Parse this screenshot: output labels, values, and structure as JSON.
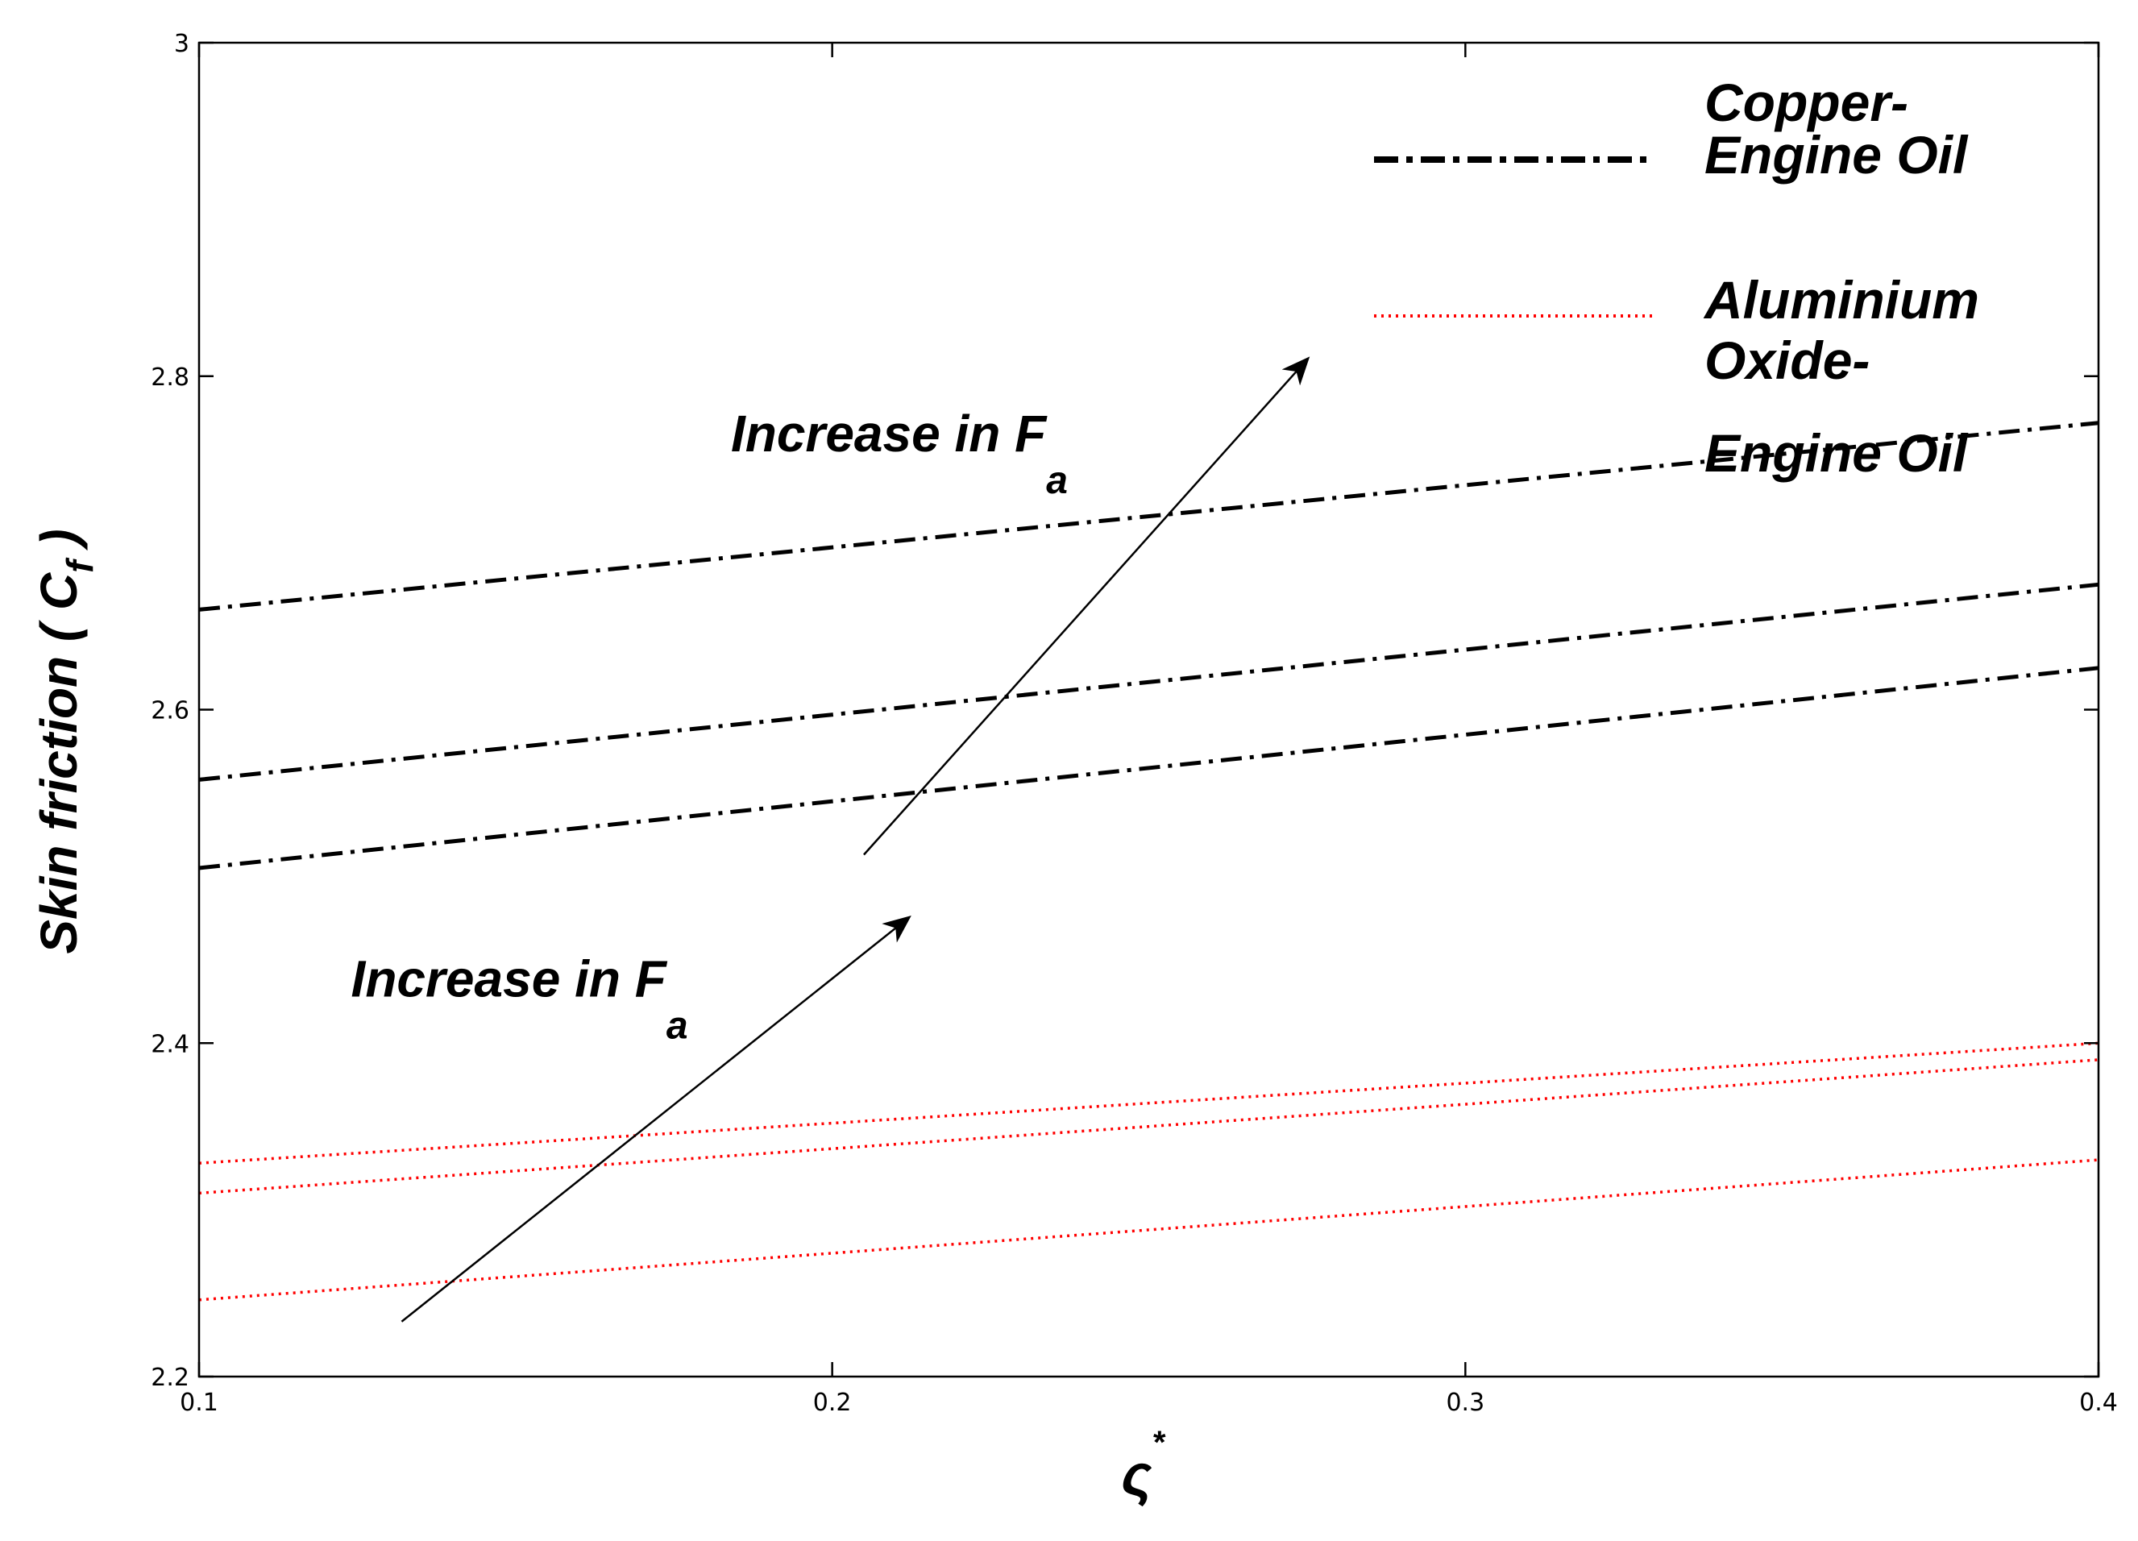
{
  "chart_data": {
    "type": "line",
    "xlabel": "ς",
    "xlabel_sup": "*",
    "ylabel": "Skin friction ( C",
    "ylabel_sub": "f",
    "ylabel_close": " )",
    "xlim": [
      0.1,
      0.4
    ],
    "ylim": [
      2.2,
      3.0
    ],
    "xticks": [
      0.1,
      0.2,
      0.3,
      0.4
    ],
    "xtick_labels": [
      "0.1",
      "0.2",
      "0.3",
      "0.4"
    ],
    "yticks": [
      2.2,
      2.4,
      2.6,
      2.8,
      3.0
    ],
    "ytick_labels": [
      "2.2",
      "2.4",
      "2.6",
      "2.8",
      "3"
    ],
    "grid": false,
    "legend": {
      "placement": "top-right",
      "entries": [
        {
          "lines": [
            "Copper-",
            "Engine Oil"
          ],
          "color": "#000000",
          "style": "dashdot"
        },
        {
          "lines": [
            "Aluminium",
            "Oxide-",
            "Engine Oil"
          ],
          "color": "#ff0000",
          "style": "dotted"
        }
      ]
    },
    "series": [
      {
        "group": "Copper-Engine Oil",
        "color": "#000000",
        "style": "dashdot",
        "x": [
          0.1,
          0.4
        ],
        "y": [
          2.66,
          2.772
        ]
      },
      {
        "group": "Copper-Engine Oil",
        "color": "#000000",
        "style": "dashdot",
        "x": [
          0.1,
          0.4
        ],
        "y": [
          2.558,
          2.675
        ]
      },
      {
        "group": "Copper-Engine Oil",
        "color": "#000000",
        "style": "dashdot",
        "x": [
          0.1,
          0.4
        ],
        "y": [
          2.505,
          2.625
        ]
      },
      {
        "group": "Aluminium Oxide-Engine Oil",
        "color": "#ff0000",
        "style": "dotted",
        "x": [
          0.1,
          0.4
        ],
        "y": [
          2.328,
          2.4
        ]
      },
      {
        "group": "Aluminium Oxide-Engine Oil",
        "color": "#ff0000",
        "style": "dotted",
        "x": [
          0.1,
          0.4
        ],
        "y": [
          2.31,
          2.39
        ]
      },
      {
        "group": "Aluminium Oxide-Engine Oil",
        "color": "#ff0000",
        "style": "dotted",
        "x": [
          0.1,
          0.4
        ],
        "y": [
          2.246,
          2.33
        ]
      }
    ],
    "annotations": [
      {
        "text": "Increase in F",
        "sub": "a",
        "x": 0.184,
        "y": 2.755,
        "arrow_from": [
          0.205,
          2.513
        ],
        "arrow_to": [
          0.275,
          2.81
        ]
      },
      {
        "text": "Increase in F",
        "sub": "a",
        "x": 0.124,
        "y": 2.428,
        "arrow_from": [
          0.132,
          2.233
        ],
        "arrow_to": [
          0.212,
          2.475
        ]
      }
    ]
  }
}
